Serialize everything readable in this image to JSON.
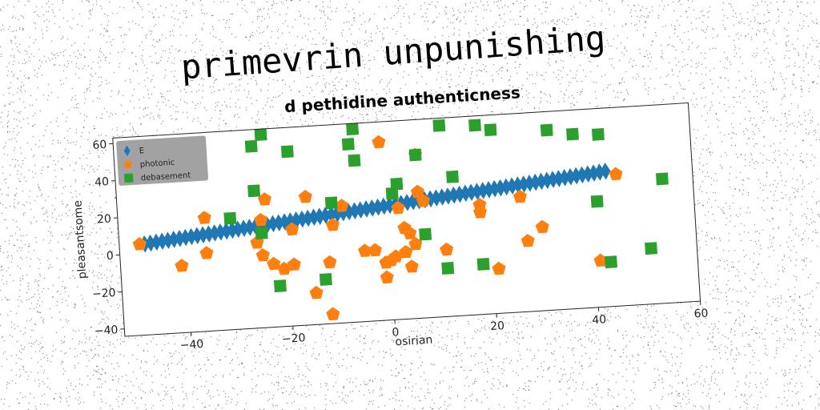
{
  "colors": {
    "background": "#ffffff",
    "series_E": "#1f77b4",
    "series_photonic": "#ff7f0e",
    "series_debasement": "#2ca02c",
    "legend_bg": "#9a9a9a"
  },
  "chart_data": {
    "type": "scatter",
    "suptitle": "primevrin unpunishing",
    "title": "d pethidine authenticness",
    "xlabel": "osirian",
    "ylabel": "pleasantsome",
    "xlim": [
      -53,
      60
    ],
    "ylim": [
      -44,
      63
    ],
    "xticks": [
      -40,
      -20,
      0,
      20,
      40,
      60
    ],
    "yticks": [
      -40,
      -20,
      0,
      20,
      40,
      60
    ],
    "grid": false,
    "legend_position": "top-left",
    "series": [
      {
        "name": "E",
        "marker": "diamond",
        "color": "#1f77b4",
        "line_from": [
          -48,
          5
        ],
        "line_to": [
          43,
          29
        ],
        "count": 80
      },
      {
        "name": "photonic",
        "marker": "pentagon",
        "color": "#ff7f0e",
        "points": [
          [
            -49,
            5
          ],
          [
            -41,
            -8
          ],
          [
            -36,
            17
          ],
          [
            -36,
            -2
          ],
          [
            -26,
            2
          ],
          [
            -25,
            14
          ],
          [
            -25,
            -5
          ],
          [
            -24,
            25
          ],
          [
            -23,
            -10
          ],
          [
            -21,
            -13
          ],
          [
            -19,
            8
          ],
          [
            -19,
            -11
          ],
          [
            -16,
            25
          ],
          [
            -15,
            -27
          ],
          [
            -12,
            -39
          ],
          [
            -12,
            -11
          ],
          [
            -11,
            9
          ],
          [
            -9,
            19
          ],
          [
            -5,
            -6
          ],
          [
            -3,
            -6
          ],
          [
            -1,
            52
          ],
          [
            -1,
            -13
          ],
          [
            -1,
            -21
          ],
          [
            0,
            -12
          ],
          [
            1,
            -10
          ],
          [
            2,
            16
          ],
          [
            3,
            -8
          ],
          [
            3,
            5
          ],
          [
            4,
            2
          ],
          [
            4,
            -16
          ],
          [
            5,
            -4
          ],
          [
            6,
            24
          ],
          [
            6,
            44
          ],
          [
            7,
            19
          ],
          [
            11,
            -8
          ],
          [
            18,
            15
          ],
          [
            18,
            11
          ],
          [
            21,
            -20
          ],
          [
            26,
            18
          ],
          [
            27,
            -6
          ],
          [
            30,
            1
          ],
          [
            41,
            -19
          ],
          [
            45,
            27
          ]
        ]
      },
      {
        "name": "debasement",
        "marker": "square",
        "color": "#2ca02c",
        "points": [
          [
            -26,
            54
          ],
          [
            -24,
            60
          ],
          [
            -26,
            30
          ],
          [
            -31,
            16
          ],
          [
            -25,
            7
          ],
          [
            -19,
            50
          ],
          [
            -22,
            -22
          ],
          [
            -11,
            21
          ],
          [
            -13,
            -20
          ],
          [
            -7,
            52
          ],
          [
            -6,
            60
          ],
          [
            -6,
            43
          ],
          [
            1,
            24
          ],
          [
            2,
            29
          ],
          [
            6,
            44
          ],
          [
            7,
            1
          ],
          [
            11,
            -18
          ],
          [
            11,
            59
          ],
          [
            13,
            31
          ],
          [
            18,
            58
          ],
          [
            18,
            -17
          ],
          [
            21,
            55
          ],
          [
            32,
            53
          ],
          [
            37,
            50
          ],
          [
            41,
            13
          ],
          [
            42,
            49
          ],
          [
            43,
            -20
          ],
          [
            51,
            -14
          ],
          [
            54,
            23
          ]
        ]
      }
    ]
  }
}
